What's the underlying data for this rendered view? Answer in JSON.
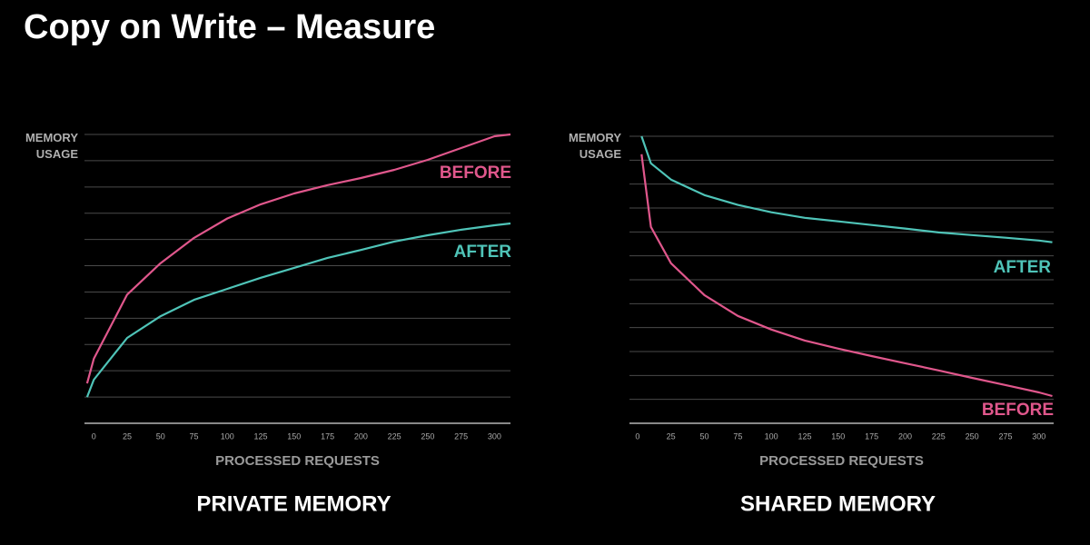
{
  "title": "Copy on Write – Measure",
  "chart_data": [
    {
      "type": "line",
      "title": "PRIVATE MEMORY",
      "x_label": "PROCESSED REQUESTS",
      "y_label": "MEMORY USAGE",
      "x": [
        -5,
        0,
        25,
        50,
        75,
        100,
        125,
        150,
        175,
        200,
        225,
        250,
        275,
        300,
        312
      ],
      "xlim": [
        -7,
        312
      ],
      "xticks": [
        0,
        25,
        50,
        75,
        100,
        125,
        150,
        175,
        200,
        225,
        250,
        275,
        300
      ],
      "ylim": [
        0,
        11
      ],
      "yticks": [
        0,
        1,
        2,
        3,
        4,
        5,
        6,
        7,
        8,
        9,
        10,
        11
      ],
      "grid": true,
      "ytick_labels": false,
      "series": [
        {
          "name": "BEFORE",
          "color": "#e0578c",
          "values": [
            1.52,
            2.46,
            4.9,
            6.1,
            7.06,
            7.8,
            8.34,
            8.75,
            9.07,
            9.34,
            9.65,
            10.03,
            10.48,
            10.93,
            11.0
          ]
        },
        {
          "name": "AFTER",
          "color": "#4fc4b8",
          "values": [
            1.0,
            1.66,
            3.25,
            4.08,
            4.7,
            5.12,
            5.54,
            5.92,
            6.3,
            6.6,
            6.92,
            7.16,
            7.37,
            7.54,
            7.61
          ]
        }
      ]
    },
    {
      "type": "line",
      "title": "SHARED MEMORY",
      "x_label": "PROCESSED REQUESTS",
      "y_label": "MEMORY USAGE",
      "x": [
        3,
        10,
        25,
        50,
        75,
        100,
        125,
        150,
        175,
        200,
        225,
        250,
        275,
        300,
        310
      ],
      "xlim": [
        -6,
        311
      ],
      "xticks": [
        0,
        25,
        50,
        75,
        100,
        125,
        150,
        175,
        200,
        225,
        250,
        275,
        300
      ],
      "ylim": [
        0,
        12
      ],
      "yticks": [
        0,
        1,
        2,
        3,
        4,
        5,
        6,
        7,
        8,
        9,
        10,
        11,
        12
      ],
      "grid": true,
      "ytick_labels": false,
      "series": [
        {
          "name": "AFTER",
          "color": "#4fc4b8",
          "values": [
            12.0,
            10.87,
            10.19,
            9.54,
            9.13,
            8.82,
            8.59,
            8.44,
            8.29,
            8.14,
            7.98,
            7.87,
            7.76,
            7.64,
            7.57
          ]
        },
        {
          "name": "BEFORE",
          "color": "#e0578c",
          "values": [
            11.25,
            8.21,
            6.69,
            5.36,
            4.49,
            3.92,
            3.46,
            3.12,
            2.81,
            2.51,
            2.21,
            1.9,
            1.6,
            1.29,
            1.14
          ]
        }
      ]
    }
  ]
}
